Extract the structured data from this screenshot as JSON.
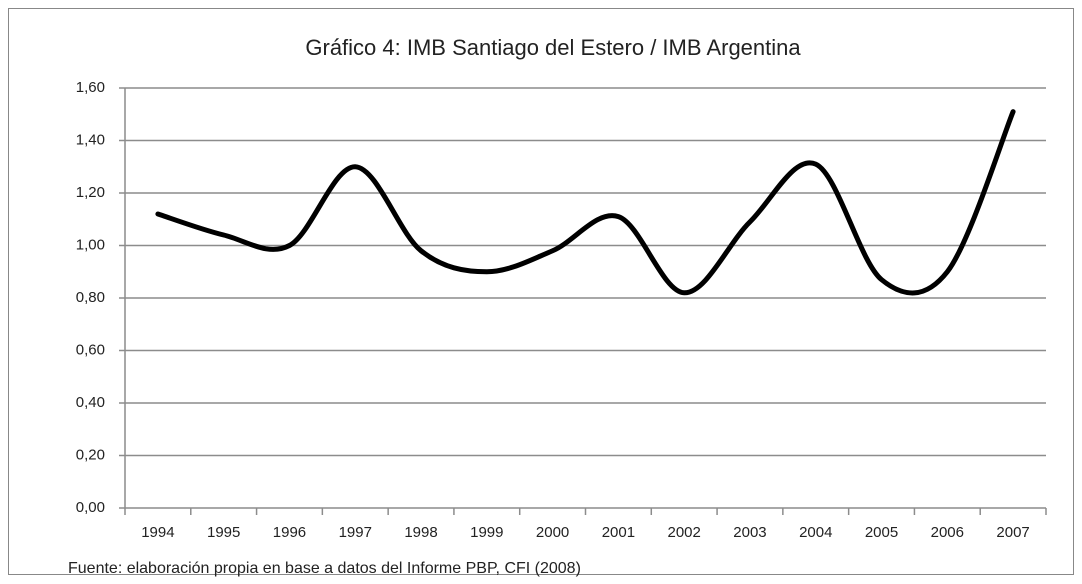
{
  "chart_data": {
    "type": "line",
    "title": "Gráfico 4: IMB Santiago del Estero / IMB Argentina",
    "source": "Fuente: elaboración propia en base a datos del Informe PBP, CFI (2008)",
    "categories": [
      "1994",
      "1995",
      "1996",
      "1997",
      "1998",
      "1999",
      "2000",
      "2001",
      "2002",
      "2003",
      "2004",
      "2005",
      "2006",
      "2007"
    ],
    "values": [
      1.12,
      1.04,
      1.0,
      1.3,
      0.98,
      0.9,
      0.98,
      1.11,
      0.82,
      1.09,
      1.31,
      0.87,
      0.9,
      1.51
    ],
    "color": "#000000",
    "smooth": true,
    "grid": true,
    "ylim": [
      0,
      1.6
    ],
    "yticks": [
      {
        "value": 0,
        "label": "0,00"
      },
      {
        "value": 0.2,
        "label": "0,20"
      },
      {
        "value": 0.4,
        "label": "0,40"
      },
      {
        "value": 0.6,
        "label": "0,60"
      },
      {
        "value": 0.8,
        "label": "0,80"
      },
      {
        "value": 1.0,
        "label": "1,00"
      },
      {
        "value": 1.2,
        "label": "1,20"
      },
      {
        "value": 1.4,
        "label": "1,40"
      },
      {
        "value": 1.6,
        "label": "1,60"
      }
    ]
  }
}
